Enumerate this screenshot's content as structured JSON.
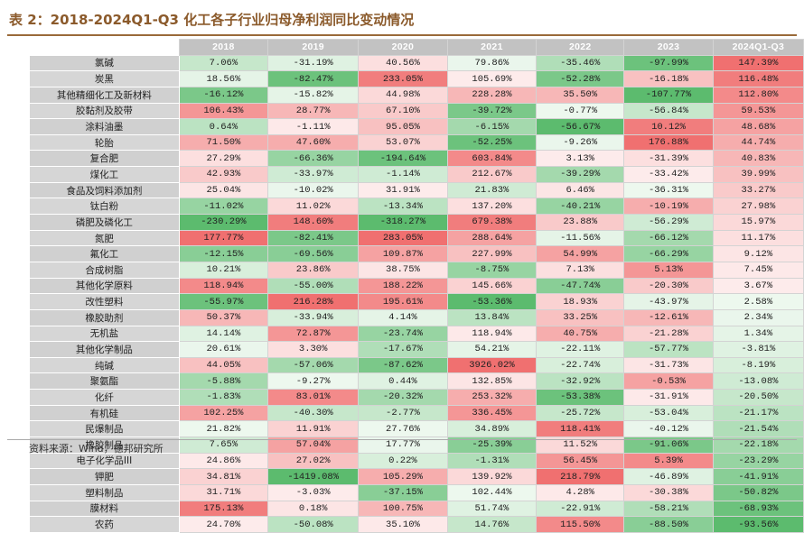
{
  "title": "表 2：2018-2024Q1-Q3 化工各子行业归母净利润同比变动情况",
  "columns": [
    "2018",
    "2019",
    "2020",
    "2021",
    "2022",
    "2023",
    "2024Q1-Q3"
  ],
  "rows": [
    {
      "name": "氯碱",
      "values": [
        "7.06%",
        "-31.19%",
        "40.56%",
        "79.86%",
        "-35.46%",
        "-97.99%",
        "147.39%"
      ],
      "nums": [
        7.06,
        -31.19,
        40.56,
        79.86,
        -35.46,
        -97.99,
        147.39
      ]
    },
    {
      "name": "炭黑",
      "values": [
        "18.56%",
        "-82.47%",
        "233.05%",
        "105.69%",
        "-52.28%",
        "-16.18%",
        "116.48%"
      ],
      "nums": [
        18.56,
        -82.47,
        233.05,
        105.69,
        -52.28,
        -16.18,
        116.48
      ]
    },
    {
      "name": "其他精细化工及新材料",
      "values": [
        "-16.12%",
        "-15.82%",
        "44.98%",
        "228.28%",
        "35.50%",
        "-107.77%",
        "112.80%"
      ],
      "nums": [
        -16.12,
        -15.82,
        44.98,
        228.28,
        35.5,
        -107.77,
        112.8
      ]
    },
    {
      "name": "胶黏剂及胶带",
      "values": [
        "106.43%",
        "28.77%",
        "67.10%",
        "-39.72%",
        "-0.77%",
        "-56.84%",
        "59.53%"
      ],
      "nums": [
        106.43,
        28.77,
        67.1,
        -39.72,
        -0.77,
        -56.84,
        59.53
      ]
    },
    {
      "name": "涂料油墨",
      "values": [
        "0.64%",
        "-1.11%",
        "95.05%",
        "-6.15%",
        "-56.67%",
        "10.12%",
        "48.68%"
      ],
      "nums": [
        0.64,
        -1.11,
        95.05,
        -6.15,
        -56.67,
        10.12,
        48.68
      ]
    },
    {
      "name": "轮胎",
      "values": [
        "71.50%",
        "47.60%",
        "53.07%",
        "-52.25%",
        "-9.26%",
        "176.88%",
        "44.74%"
      ],
      "nums": [
        71.5,
        47.6,
        53.07,
        -52.25,
        -9.26,
        176.88,
        44.74
      ]
    },
    {
      "name": "复合肥",
      "values": [
        "27.29%",
        "-66.36%",
        "-194.64%",
        "603.84%",
        "3.13%",
        "-31.39%",
        "40.83%"
      ],
      "nums": [
        27.29,
        -66.36,
        -194.64,
        603.84,
        3.13,
        -31.39,
        40.83
      ]
    },
    {
      "name": "煤化工",
      "values": [
        "42.93%",
        "-33.97%",
        "-1.14%",
        "212.67%",
        "-39.29%",
        "-33.42%",
        "39.99%"
      ],
      "nums": [
        42.93,
        -33.97,
        -1.14,
        212.67,
        -39.29,
        -33.42,
        39.99
      ]
    },
    {
      "name": "食品及饲料添加剂",
      "values": [
        "25.04%",
        "-10.02%",
        "31.91%",
        "21.83%",
        "6.46%",
        "-36.31%",
        "33.27%"
      ],
      "nums": [
        25.04,
        -10.02,
        31.91,
        21.83,
        6.46,
        -36.31,
        33.27
      ]
    },
    {
      "name": "钛白粉",
      "values": [
        "-11.02%",
        "11.02%",
        "-13.34%",
        "137.20%",
        "-40.21%",
        "-10.19%",
        "27.98%"
      ],
      "nums": [
        -11.02,
        11.02,
        -13.34,
        137.2,
        -40.21,
        -10.19,
        27.98
      ]
    },
    {
      "name": "磷肥及磷化工",
      "values": [
        "-230.29%",
        "148.60%",
        "-318.27%",
        "679.38%",
        "23.88%",
        "-56.29%",
        "15.97%"
      ],
      "nums": [
        -230.29,
        148.6,
        -318.27,
        679.38,
        23.88,
        -56.29,
        15.97
      ]
    },
    {
      "name": "氮肥",
      "values": [
        "177.77%",
        "-82.41%",
        "283.05%",
        "288.64%",
        "-11.56%",
        "-66.12%",
        "11.17%"
      ],
      "nums": [
        177.77,
        -82.41,
        283.05,
        288.64,
        -11.56,
        -66.12,
        11.17
      ]
    },
    {
      "name": "氟化工",
      "values": [
        "-12.15%",
        "-69.56%",
        "109.87%",
        "227.99%",
        "54.99%",
        "-66.29%",
        "9.12%"
      ],
      "nums": [
        -12.15,
        -69.56,
        109.87,
        227.99,
        54.99,
        -66.29,
        9.12
      ]
    },
    {
      "name": "合成树脂",
      "values": [
        "10.21%",
        "23.86%",
        "38.75%",
        "-8.75%",
        "7.13%",
        "5.13%",
        "7.45%"
      ],
      "nums": [
        10.21,
        23.86,
        38.75,
        -8.75,
        7.13,
        5.13,
        7.45
      ]
    },
    {
      "name": "其他化学原料",
      "values": [
        "118.94%",
        "-55.00%",
        "188.22%",
        "145.66%",
        "-47.74%",
        "-20.30%",
        "3.67%"
      ],
      "nums": [
        118.94,
        -55.0,
        188.22,
        145.66,
        -47.74,
        -20.3,
        3.67
      ]
    },
    {
      "name": "改性塑料",
      "values": [
        "-55.97%",
        "216.28%",
        "195.61%",
        "-53.36%",
        "18.93%",
        "-43.97%",
        "2.58%"
      ],
      "nums": [
        -55.97,
        216.28,
        195.61,
        -53.36,
        18.93,
        -43.97,
        2.58
      ]
    },
    {
      "name": "橡胶助剂",
      "values": [
        "50.37%",
        "-33.94%",
        "4.14%",
        "13.84%",
        "33.25%",
        "-12.61%",
        "2.34%"
      ],
      "nums": [
        50.37,
        -33.94,
        4.14,
        13.84,
        33.25,
        -12.61,
        2.34
      ]
    },
    {
      "name": "无机盐",
      "values": [
        "14.14%",
        "72.87%",
        "-23.74%",
        "118.94%",
        "40.75%",
        "-21.28%",
        "1.34%"
      ],
      "nums": [
        14.14,
        72.87,
        -23.74,
        118.94,
        40.75,
        -21.28,
        1.34
      ]
    },
    {
      "name": "其他化学制品",
      "values": [
        "20.61%",
        "3.30%",
        "-17.67%",
        "54.21%",
        "-22.11%",
        "-57.77%",
        "-3.81%"
      ],
      "nums": [
        20.61,
        3.3,
        -17.67,
        54.21,
        -22.11,
        -57.77,
        -3.81
      ]
    },
    {
      "name": "纯碱",
      "values": [
        "44.05%",
        "-57.06%",
        "-87.62%",
        "3926.02%",
        "-22.74%",
        "-31.73%",
        "-8.19%"
      ],
      "nums": [
        44.05,
        -57.06,
        -87.62,
        3926.02,
        -22.74,
        -31.73,
        -8.19
      ]
    },
    {
      "name": "聚氨酯",
      "values": [
        "-5.88%",
        "-9.27%",
        "0.44%",
        "132.85%",
        "-32.92%",
        "-0.53%",
        "-13.08%"
      ],
      "nums": [
        -5.88,
        -9.27,
        0.44,
        132.85,
        -32.92,
        -0.53,
        -13.08
      ]
    },
    {
      "name": "化纤",
      "values": [
        "-1.83%",
        "83.01%",
        "-20.32%",
        "253.32%",
        "-53.38%",
        "-31.91%",
        "-20.50%"
      ],
      "nums": [
        -1.83,
        83.01,
        -20.32,
        253.32,
        -53.38,
        -31.91,
        -20.5
      ]
    },
    {
      "name": "有机硅",
      "values": [
        "102.25%",
        "-40.30%",
        "-2.77%",
        "336.45%",
        "-25.72%",
        "-53.04%",
        "-21.17%"
      ],
      "nums": [
        102.25,
        -40.3,
        -2.77,
        336.45,
        -25.72,
        -53.04,
        -21.17
      ]
    },
    {
      "name": "民爆制品",
      "values": [
        "21.82%",
        "11.91%",
        "27.76%",
        "34.89%",
        "118.41%",
        "-40.12%",
        "-21.54%"
      ],
      "nums": [
        21.82,
        11.91,
        27.76,
        34.89,
        118.41,
        -40.12,
        -21.54
      ]
    },
    {
      "name": "橡胶制品",
      "values": [
        "7.65%",
        "57.04%",
        "17.77%",
        "-25.39%",
        "11.52%",
        "-91.06%",
        "-22.18%"
      ],
      "nums": [
        7.65,
        57.04,
        17.77,
        -25.39,
        11.52,
        -91.06,
        -22.18
      ]
    },
    {
      "name": "电子化学品III",
      "values": [
        "24.86%",
        "27.02%",
        "0.22%",
        "-1.31%",
        "56.45%",
        "5.39%",
        "-23.29%"
      ],
      "nums": [
        24.86,
        27.02,
        0.22,
        -1.31,
        56.45,
        5.39,
        -23.29
      ]
    },
    {
      "name": "钾肥",
      "values": [
        "34.81%",
        "-1419.08%",
        "105.29%",
        "139.92%",
        "218.79%",
        "-46.89%",
        "-41.91%"
      ],
      "nums": [
        34.81,
        -1419.08,
        105.29,
        139.92,
        218.79,
        -46.89,
        -41.91
      ]
    },
    {
      "name": "塑料制品",
      "values": [
        "31.71%",
        "-3.03%",
        "-37.15%",
        "102.44%",
        "4.28%",
        "-30.38%",
        "-50.82%"
      ],
      "nums": [
        31.71,
        -3.03,
        -37.15,
        102.44,
        4.28,
        -30.38,
        -50.82
      ]
    },
    {
      "name": "膜材料",
      "values": [
        "175.13%",
        "0.18%",
        "100.75%",
        "51.74%",
        "-22.91%",
        "-58.21%",
        "-68.93%"
      ],
      "nums": [
        175.13,
        0.18,
        100.75,
        51.74,
        -22.91,
        -58.21,
        -68.93
      ]
    },
    {
      "name": "农药",
      "values": [
        "24.70%",
        "-50.08%",
        "35.10%",
        "14.76%",
        "115.50%",
        "-88.50%",
        "-93.56%"
      ],
      "nums": [
        24.7,
        -50.08,
        35.1,
        14.76,
        115.5,
        -88.5,
        -93.56
      ]
    }
  ],
  "colors": {
    "pos_strong": "#f07070",
    "pos_light": "#fdecec",
    "neg_strong": "#5cbb6e",
    "neg_light": "#eef8ef",
    "header_bg": "#c2c2c2",
    "title": "#8B5A2B"
  },
  "source": "资料来源：Wind，德邦研究所"
}
